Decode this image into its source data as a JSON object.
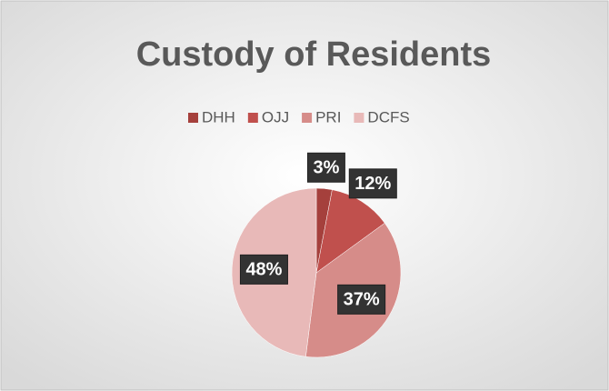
{
  "chart_data": {
    "type": "pie",
    "title": "Custody of Residents",
    "categories": [
      "DHH",
      "OJJ",
      "PRI",
      "DCFS"
    ],
    "values": [
      3,
      12,
      37,
      48
    ],
    "value_labels": [
      "3%",
      "12%",
      "37%",
      "48%"
    ],
    "colors": [
      "#a5403c",
      "#c0504d",
      "#d68c89",
      "#e8b9b8"
    ],
    "legend": "top"
  }
}
